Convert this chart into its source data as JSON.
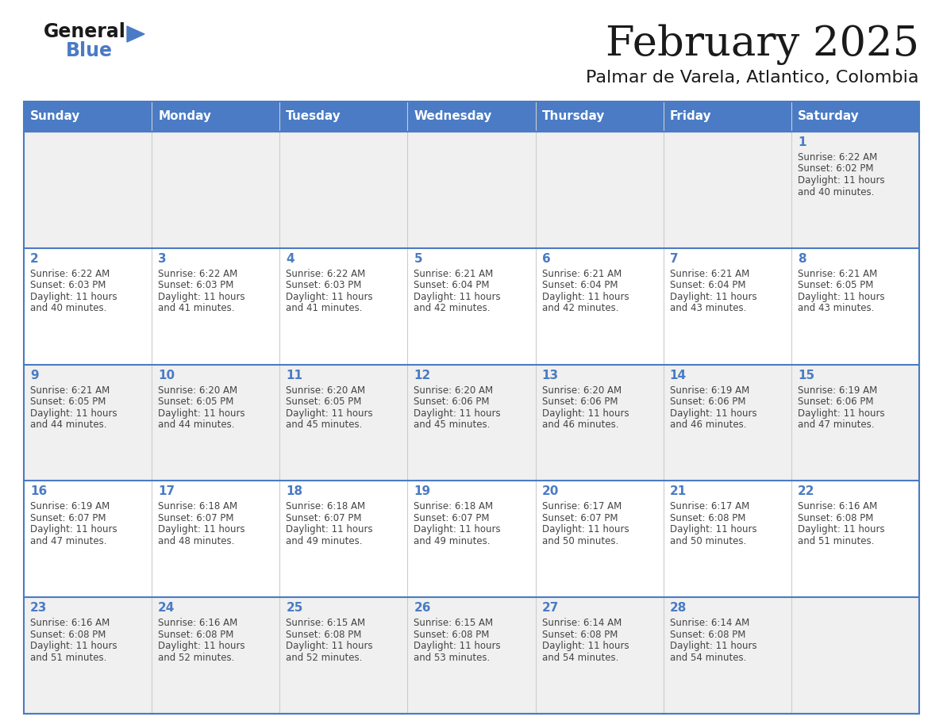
{
  "title": "February 2025",
  "subtitle": "Palmar de Varela, Atlantico, Colombia",
  "days_of_week": [
    "Sunday",
    "Monday",
    "Tuesday",
    "Wednesday",
    "Thursday",
    "Friday",
    "Saturday"
  ],
  "header_bg": "#4a7bc4",
  "header_text": "#FFFFFF",
  "cell_bg_light": "#f0f0f0",
  "cell_bg_white": "#FFFFFF",
  "cell_border_color": "#4a7bc4",
  "day_num_color": "#4a7bc4",
  "text_color": "#444444",
  "title_color": "#1a1a1a",
  "calendar_data": [
    [
      null,
      null,
      null,
      null,
      null,
      null,
      {
        "day": "1",
        "sunrise": "6:22 AM",
        "sunset": "6:02 PM",
        "daylight1": "Daylight: 11 hours",
        "daylight2": "and 40 minutes."
      }
    ],
    [
      {
        "day": "2",
        "sunrise": "6:22 AM",
        "sunset": "6:03 PM",
        "daylight1": "Daylight: 11 hours",
        "daylight2": "and 40 minutes."
      },
      {
        "day": "3",
        "sunrise": "6:22 AM",
        "sunset": "6:03 PM",
        "daylight1": "Daylight: 11 hours",
        "daylight2": "and 41 minutes."
      },
      {
        "day": "4",
        "sunrise": "6:22 AM",
        "sunset": "6:03 PM",
        "daylight1": "Daylight: 11 hours",
        "daylight2": "and 41 minutes."
      },
      {
        "day": "5",
        "sunrise": "6:21 AM",
        "sunset": "6:04 PM",
        "daylight1": "Daylight: 11 hours",
        "daylight2": "and 42 minutes."
      },
      {
        "day": "6",
        "sunrise": "6:21 AM",
        "sunset": "6:04 PM",
        "daylight1": "Daylight: 11 hours",
        "daylight2": "and 42 minutes."
      },
      {
        "day": "7",
        "sunrise": "6:21 AM",
        "sunset": "6:04 PM",
        "daylight1": "Daylight: 11 hours",
        "daylight2": "and 43 minutes."
      },
      {
        "day": "8",
        "sunrise": "6:21 AM",
        "sunset": "6:05 PM",
        "daylight1": "Daylight: 11 hours",
        "daylight2": "and 43 minutes."
      }
    ],
    [
      {
        "day": "9",
        "sunrise": "6:21 AM",
        "sunset": "6:05 PM",
        "daylight1": "Daylight: 11 hours",
        "daylight2": "and 44 minutes."
      },
      {
        "day": "10",
        "sunrise": "6:20 AM",
        "sunset": "6:05 PM",
        "daylight1": "Daylight: 11 hours",
        "daylight2": "and 44 minutes."
      },
      {
        "day": "11",
        "sunrise": "6:20 AM",
        "sunset": "6:05 PM",
        "daylight1": "Daylight: 11 hours",
        "daylight2": "and 45 minutes."
      },
      {
        "day": "12",
        "sunrise": "6:20 AM",
        "sunset": "6:06 PM",
        "daylight1": "Daylight: 11 hours",
        "daylight2": "and 45 minutes."
      },
      {
        "day": "13",
        "sunrise": "6:20 AM",
        "sunset": "6:06 PM",
        "daylight1": "Daylight: 11 hours",
        "daylight2": "and 46 minutes."
      },
      {
        "day": "14",
        "sunrise": "6:19 AM",
        "sunset": "6:06 PM",
        "daylight1": "Daylight: 11 hours",
        "daylight2": "and 46 minutes."
      },
      {
        "day": "15",
        "sunrise": "6:19 AM",
        "sunset": "6:06 PM",
        "daylight1": "Daylight: 11 hours",
        "daylight2": "and 47 minutes."
      }
    ],
    [
      {
        "day": "16",
        "sunrise": "6:19 AM",
        "sunset": "6:07 PM",
        "daylight1": "Daylight: 11 hours",
        "daylight2": "and 47 minutes."
      },
      {
        "day": "17",
        "sunrise": "6:18 AM",
        "sunset": "6:07 PM",
        "daylight1": "Daylight: 11 hours",
        "daylight2": "and 48 minutes."
      },
      {
        "day": "18",
        "sunrise": "6:18 AM",
        "sunset": "6:07 PM",
        "daylight1": "Daylight: 11 hours",
        "daylight2": "and 49 minutes."
      },
      {
        "day": "19",
        "sunrise": "6:18 AM",
        "sunset": "6:07 PM",
        "daylight1": "Daylight: 11 hours",
        "daylight2": "and 49 minutes."
      },
      {
        "day": "20",
        "sunrise": "6:17 AM",
        "sunset": "6:07 PM",
        "daylight1": "Daylight: 11 hours",
        "daylight2": "and 50 minutes."
      },
      {
        "day": "21",
        "sunrise": "6:17 AM",
        "sunset": "6:08 PM",
        "daylight1": "Daylight: 11 hours",
        "daylight2": "and 50 minutes."
      },
      {
        "day": "22",
        "sunrise": "6:16 AM",
        "sunset": "6:08 PM",
        "daylight1": "Daylight: 11 hours",
        "daylight2": "and 51 minutes."
      }
    ],
    [
      {
        "day": "23",
        "sunrise": "6:16 AM",
        "sunset": "6:08 PM",
        "daylight1": "Daylight: 11 hours",
        "daylight2": "and 51 minutes."
      },
      {
        "day": "24",
        "sunrise": "6:16 AM",
        "sunset": "6:08 PM",
        "daylight1": "Daylight: 11 hours",
        "daylight2": "and 52 minutes."
      },
      {
        "day": "25",
        "sunrise": "6:15 AM",
        "sunset": "6:08 PM",
        "daylight1": "Daylight: 11 hours",
        "daylight2": "and 52 minutes."
      },
      {
        "day": "26",
        "sunrise": "6:15 AM",
        "sunset": "6:08 PM",
        "daylight1": "Daylight: 11 hours",
        "daylight2": "and 53 minutes."
      },
      {
        "day": "27",
        "sunrise": "6:14 AM",
        "sunset": "6:08 PM",
        "daylight1": "Daylight: 11 hours",
        "daylight2": "and 54 minutes."
      },
      {
        "day": "28",
        "sunrise": "6:14 AM",
        "sunset": "6:08 PM",
        "daylight1": "Daylight: 11 hours",
        "daylight2": "and 54 minutes."
      },
      null
    ]
  ],
  "logo_general_color": "#1a1a1a",
  "logo_blue_color": "#4a7bc4",
  "logo_triangle_color": "#4a7bc4"
}
